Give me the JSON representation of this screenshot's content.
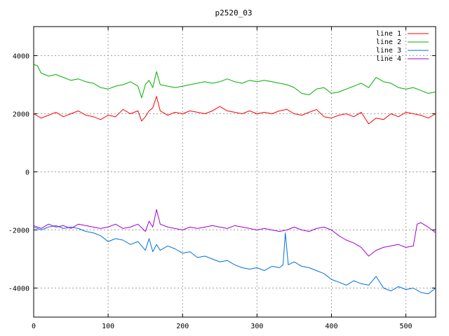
{
  "chart_data": {
    "type": "line",
    "title": "p2520_03",
    "xlabel": "",
    "ylabel": "",
    "xlim": [
      0,
      540
    ],
    "ylim": [
      -5000,
      5000
    ],
    "xticks": [
      0,
      100,
      200,
      300,
      400,
      500
    ],
    "yticks": [
      -4000,
      -2000,
      0,
      2000,
      4000
    ],
    "grid": true,
    "legend_position": "top-right",
    "series": [
      {
        "name": "line 1",
        "color": "#ff0000",
        "x": [
          0,
          10,
          20,
          30,
          40,
          50,
          60,
          70,
          80,
          90,
          100,
          110,
          120,
          130,
          140,
          145,
          150,
          155,
          160,
          165,
          170,
          180,
          190,
          200,
          210,
          220,
          230,
          240,
          250,
          260,
          270,
          280,
          290,
          300,
          310,
          320,
          330,
          340,
          350,
          360,
          370,
          380,
          390,
          400,
          410,
          420,
          430,
          440,
          450,
          460,
          470,
          480,
          490,
          500,
          510,
          520,
          530,
          540
        ],
        "y": [
          2000,
          1850,
          1950,
          2050,
          1900,
          2000,
          2100,
          1950,
          1900,
          1800,
          1950,
          1900,
          2150,
          2000,
          2100,
          1750,
          1900,
          2100,
          2200,
          2600,
          2100,
          1950,
          2050,
          2000,
          2100,
          2050,
          2000,
          2100,
          2250,
          2100,
          2050,
          2000,
          2100,
          2000,
          2050,
          2000,
          2100,
          2150,
          2000,
          1950,
          2050,
          2150,
          1900,
          1850,
          1950,
          2000,
          1900,
          2050,
          1650,
          1850,
          1800,
          2000,
          1900,
          2050,
          2000,
          1950,
          1850,
          2000
        ]
      },
      {
        "name": "line 2",
        "color": "#00b000",
        "x": [
          0,
          5,
          10,
          20,
          30,
          40,
          50,
          60,
          70,
          80,
          90,
          100,
          110,
          120,
          130,
          140,
          145,
          150,
          155,
          160,
          165,
          170,
          180,
          190,
          200,
          210,
          220,
          230,
          240,
          250,
          260,
          270,
          280,
          290,
          300,
          310,
          320,
          330,
          340,
          350,
          360,
          370,
          380,
          390,
          400,
          410,
          420,
          430,
          440,
          450,
          460,
          470,
          480,
          490,
          500,
          510,
          520,
          530,
          540
        ],
        "y": [
          3700,
          3650,
          3400,
          3300,
          3350,
          3250,
          3150,
          3200,
          3100,
          3050,
          2900,
          2850,
          2950,
          3000,
          3100,
          2950,
          2550,
          3000,
          3150,
          2900,
          3450,
          3000,
          2950,
          2900,
          2950,
          3000,
          3050,
          3100,
          3050,
          3100,
          3200,
          3100,
          3050,
          3150,
          3100,
          3150,
          3100,
          3050,
          3000,
          2900,
          2700,
          2650,
          2850,
          2900,
          2700,
          2750,
          2850,
          2950,
          3050,
          2900,
          3250,
          3100,
          3050,
          2900,
          2850,
          2900,
          2800,
          2700,
          2750
        ]
      },
      {
        "name": "line 3",
        "color": "#0070e0",
        "x": [
          0,
          10,
          20,
          30,
          40,
          50,
          60,
          70,
          80,
          90,
          100,
          110,
          120,
          130,
          140,
          150,
          155,
          160,
          165,
          170,
          180,
          190,
          200,
          210,
          220,
          230,
          240,
          250,
          260,
          270,
          280,
          290,
          300,
          310,
          320,
          330,
          335,
          338,
          342,
          350,
          360,
          370,
          380,
          390,
          400,
          410,
          420,
          430,
          440,
          450,
          460,
          470,
          480,
          490,
          500,
          510,
          520,
          530,
          540
        ],
        "y": [
          -1900,
          -2000,
          -1900,
          -1850,
          -1950,
          -1900,
          -1950,
          -2050,
          -2100,
          -2200,
          -2400,
          -2300,
          -2350,
          -2500,
          -2400,
          -2700,
          -2300,
          -2750,
          -2500,
          -2700,
          -2550,
          -2650,
          -2800,
          -2750,
          -2950,
          -2900,
          -3000,
          -3100,
          -3050,
          -3200,
          -3300,
          -3350,
          -3300,
          -3400,
          -3250,
          -3300,
          -3200,
          -2100,
          -3200,
          -3100,
          -3250,
          -3300,
          -3400,
          -3500,
          -3700,
          -3800,
          -3900,
          -3750,
          -3850,
          -3900,
          -3600,
          -4000,
          -4100,
          -3950,
          -4050,
          -4000,
          -4150,
          -4200,
          -4000
        ]
      },
      {
        "name": "line 4",
        "color": "#a000d0",
        "x": [
          0,
          10,
          20,
          30,
          40,
          50,
          60,
          70,
          80,
          90,
          100,
          110,
          120,
          130,
          140,
          150,
          155,
          160,
          165,
          170,
          180,
          190,
          200,
          210,
          220,
          230,
          240,
          250,
          260,
          270,
          280,
          290,
          300,
          310,
          320,
          330,
          340,
          350,
          360,
          370,
          380,
          390,
          400,
          410,
          420,
          430,
          440,
          450,
          460,
          470,
          480,
          490,
          500,
          510,
          515,
          520,
          530,
          540
        ],
        "y": [
          -1850,
          -1950,
          -1800,
          -1900,
          -1850,
          -1950,
          -1800,
          -1850,
          -1900,
          -1950,
          -1900,
          -1800,
          -1950,
          -1900,
          -1800,
          -2050,
          -1700,
          -1900,
          -1300,
          -1800,
          -1900,
          -1950,
          -2000,
          -1900,
          -1950,
          -1900,
          -1850,
          -1900,
          -1950,
          -1850,
          -1900,
          -1950,
          -2000,
          -1950,
          -2000,
          -2050,
          -2000,
          -1900,
          -2000,
          -2050,
          -1950,
          -1900,
          -2000,
          -2200,
          -2350,
          -2450,
          -2600,
          -2900,
          -2700,
          -2600,
          -2550,
          -2500,
          -2600,
          -2550,
          -1800,
          -1750,
          -1900,
          -2100
        ]
      }
    ]
  }
}
